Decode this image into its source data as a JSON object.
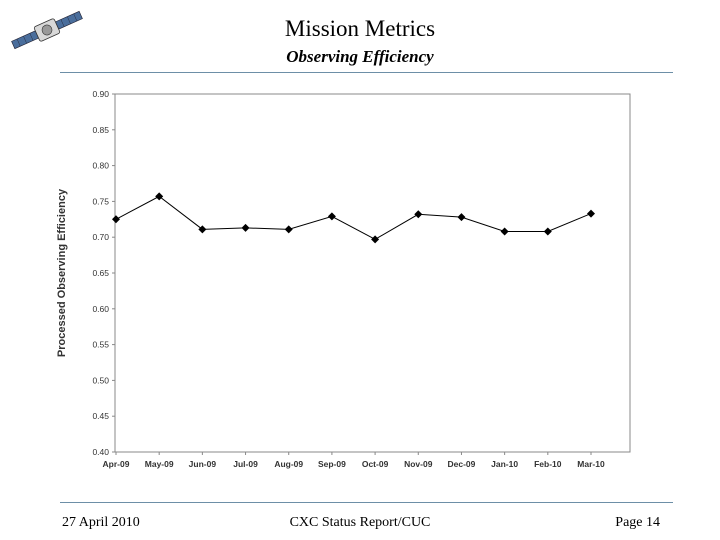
{
  "header": {
    "title": "Mission Metrics",
    "subtitle": "Observing Efficiency"
  },
  "footer": {
    "date": "27 April 2010",
    "report": "CXC Status Report/CUC",
    "page": "Page 14"
  },
  "colors": {
    "rule": "#6d8fa7",
    "series": "#000000",
    "plot_border": "#888888"
  },
  "logo_icon": "satellite-icon",
  "chart_data": {
    "type": "line",
    "title": "",
    "xlabel": "",
    "ylabel": "Processed Observing Efficiency",
    "categories": [
      "Apr-09",
      "May-09",
      "Jun-09",
      "Jul-09",
      "Aug-09",
      "Sep-09",
      "Oct-09",
      "Nov-09",
      "Dec-09",
      "Jan-10",
      "Feb-10",
      "Mar-10"
    ],
    "series": [
      {
        "values": [
          0.725,
          0.757,
          0.711,
          0.713,
          0.711,
          0.729,
          0.697,
          0.732,
          0.728,
          0.708,
          0.708,
          0.733
        ]
      }
    ],
    "ylim": [
      0.4,
      0.9
    ],
    "yticks": [
      "0.90",
      "0.85",
      "0.80",
      "0.75",
      "0.70",
      "0.65",
      "0.60",
      "0.55",
      "0.50",
      "0.45",
      "0.40"
    ],
    "grid": false,
    "legend": "none",
    "marker": "diamond"
  }
}
